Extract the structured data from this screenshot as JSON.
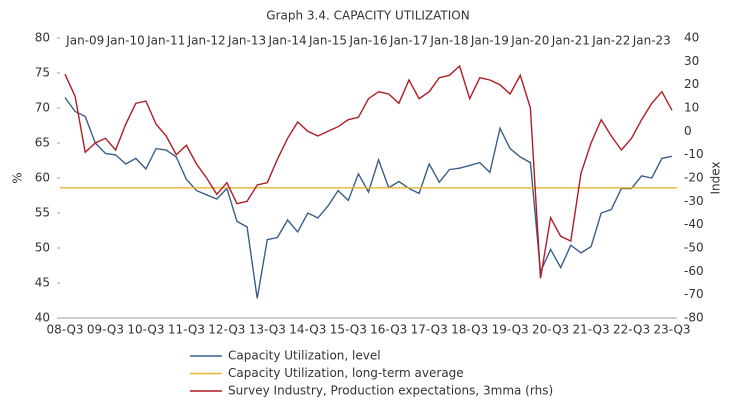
{
  "chart_data": {
    "type": "line",
    "title": "Graph 3.4. CAPACITY UTILIZATION",
    "ylabel": "%",
    "y2label": "Index",
    "categories": [
      "08-Q3",
      null,
      null,
      null,
      "09-Q3",
      null,
      null,
      null,
      "10-Q3",
      null,
      null,
      null,
      "11-Q3",
      null,
      null,
      null,
      "12-Q3",
      null,
      null,
      null,
      "13-Q3",
      null,
      null,
      null,
      "14-Q3",
      null,
      null,
      null,
      "15-Q3",
      null,
      null,
      null,
      "16-Q3",
      null,
      null,
      null,
      "17-Q3",
      null,
      null,
      null,
      "18-Q3",
      null,
      null,
      null,
      "19-Q3",
      null,
      null,
      null,
      "20-Q3",
      null,
      null,
      null,
      "21-Q3",
      null,
      null,
      null,
      "22-Q3",
      null,
      null,
      null,
      "23-Q3"
    ],
    "top_categories": [
      null,
      null,
      "Jan-09",
      null,
      null,
      null,
      "Jan-10",
      null,
      null,
      null,
      "Jan-11",
      null,
      null,
      null,
      "Jan-12",
      null,
      null,
      null,
      "Jan-13",
      null,
      null,
      null,
      "Jan-14",
      null,
      null,
      null,
      "Jan-15",
      null,
      null,
      null,
      "Jan-16",
      null,
      null,
      null,
      "Jan-17",
      null,
      null,
      null,
      "Jan-18",
      null,
      null,
      null,
      "Jan-19",
      null,
      null,
      null,
      "Jan-20",
      null,
      null,
      null,
      "Jan-21",
      null,
      null,
      null,
      "Jan-22",
      null,
      null,
      null,
      "Jan-23",
      null,
      null
    ],
    "series": [
      {
        "name": "Capacity Utilization, level",
        "color": "#3a5f8a",
        "values": [
          71.5,
          69.5,
          68.8,
          65,
          63.5,
          63.3,
          62,
          62.8,
          61.3,
          64.2,
          64,
          63,
          59.8,
          58.2,
          57.6,
          57,
          58.5,
          53.8,
          53,
          42.8,
          51.2,
          51.5,
          54,
          52.3,
          55,
          54.3,
          56,
          58.2,
          56.8,
          60.6,
          58,
          62.6,
          58.6,
          59.5,
          58.5,
          57.8,
          62,
          59.4,
          61.2,
          61.4,
          61.8,
          62.2,
          60.8,
          67.1,
          64.2,
          63,
          62.2,
          46.6,
          49.8,
          47.2,
          50.4,
          49.3,
          50.2,
          55,
          55.5,
          58.5,
          58.5,
          60.3,
          60,
          62.8,
          63.1
        ]
      },
      {
        "name": "Capacity Utilization, long-term average",
        "color": "#e8b530",
        "value": 58.6
      },
      {
        "name": "Survey Industry, Production expectations, 3mma (rhs)",
        "color": "#b01c24",
        "axis": "y2",
        "values": [
          24.5,
          15,
          -9,
          -5,
          -3,
          -8,
          3,
          12,
          13,
          3,
          -2,
          -10,
          -6,
          -14,
          -20,
          -27,
          -22,
          -31,
          -30,
          -23,
          -22,
          -12,
          -3,
          4,
          0,
          -2,
          0,
          2,
          5,
          6,
          14,
          17,
          16,
          12,
          22,
          14,
          17,
          23,
          24,
          28,
          14,
          23,
          22,
          20,
          16,
          24,
          10,
          -63,
          -37,
          -45,
          -47,
          -18,
          -5,
          5,
          -2,
          -8,
          -3,
          5,
          12,
          17,
          9
        ]
      }
    ],
    "ylim": [
      40,
      80
    ],
    "yticks": [
      40,
      45,
      50,
      55,
      60,
      65,
      70,
      75,
      80
    ],
    "y2lim": [
      -80,
      40
    ],
    "y2ticks": [
      -80,
      -70,
      -60,
      -50,
      -40,
      -30,
      -20,
      -10,
      0,
      10,
      20,
      30,
      40
    ]
  }
}
